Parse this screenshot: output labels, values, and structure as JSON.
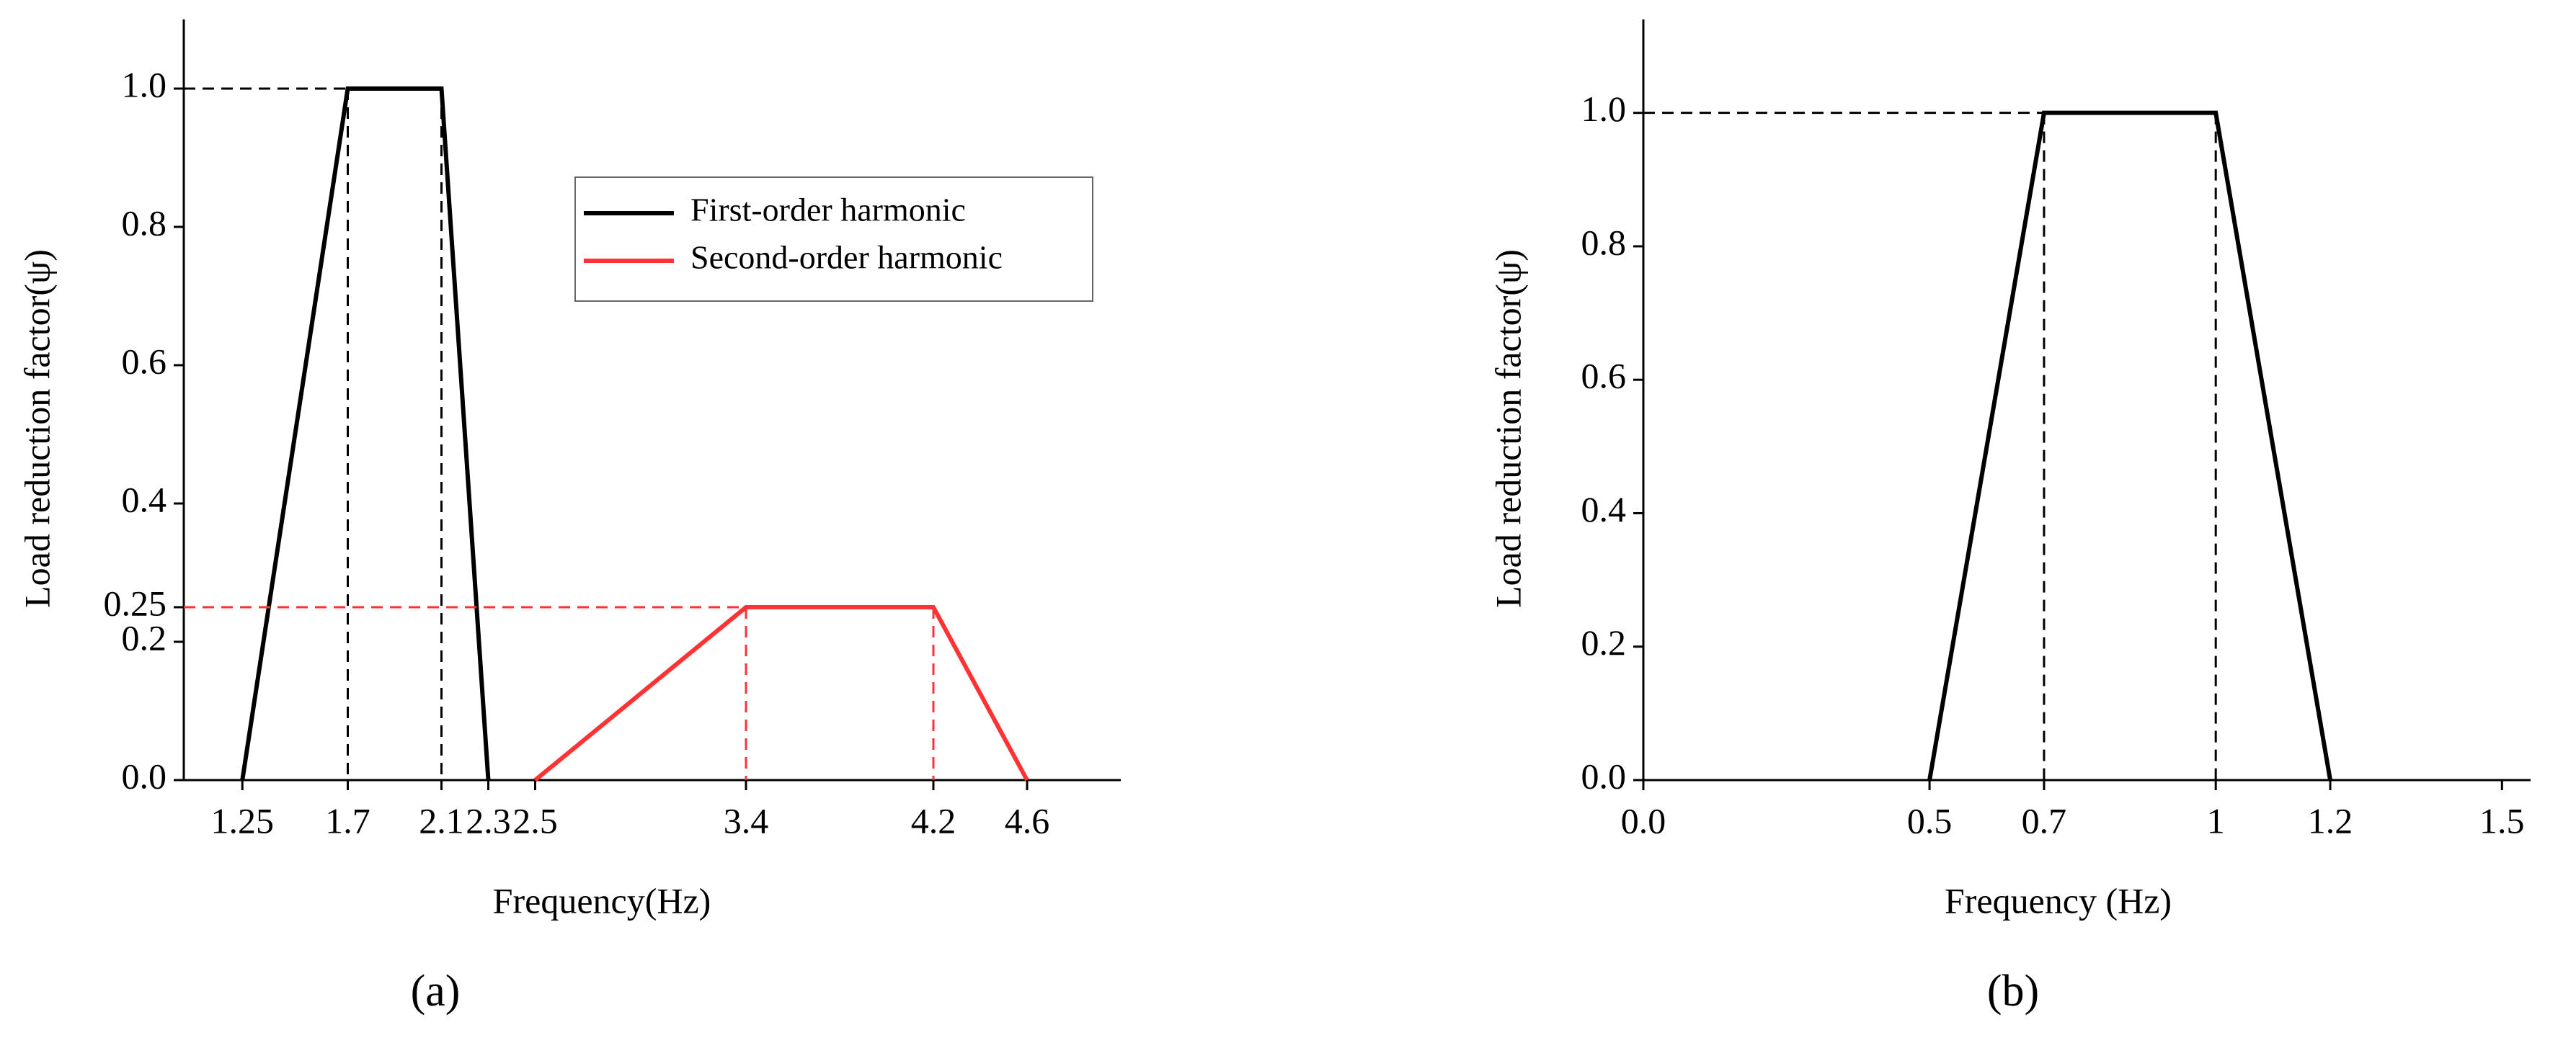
{
  "chart_data": [
    {
      "type": "line",
      "panel_label": "(a)",
      "x_label": "Frequency(Hz)",
      "y_label": "Load reduction factor(ψ)",
      "xlim": [
        1.0,
        5.0
      ],
      "ylim": [
        0,
        1.1
      ],
      "xticks": [
        1.25,
        1.7,
        2.1,
        2.3,
        2.5,
        3.4,
        4.2,
        4.6
      ],
      "yticks": [
        {
          "value": 0,
          "label": "0.0"
        },
        0.2,
        0.25,
        0.4,
        0.6,
        0.8,
        {
          "value": 1,
          "label": "1.0"
        }
      ],
      "legend": "upper center",
      "series": [
        {
          "name": "First-order harmonic",
          "color": "#000000",
          "x": [
            1.25,
            1.7,
            2.1,
            2.3
          ],
          "values": [
            0,
            1,
            1,
            0
          ]
        },
        {
          "name": "Second-order harmonic",
          "color": "#ff3333",
          "x": [
            2.5,
            3.4,
            4.2,
            4.6
          ],
          "values": [
            0,
            0.25,
            0.25,
            0
          ]
        }
      ]
    },
    {
      "type": "line",
      "panel_label": "(b)",
      "x_label": "Frequency (Hz)",
      "y_label": "Load reduction factor(ψ)",
      "xlim": [
        0,
        1.55
      ],
      "ylim": [
        0,
        1.14
      ],
      "xticks": [
        {
          "value": 0,
          "label": "0.0"
        },
        0.5,
        0.7,
        1,
        1.2,
        1.5
      ],
      "yticks": [
        {
          "value": 0,
          "label": "0.0"
        },
        0.2,
        0.4,
        0.6,
        0.8,
        {
          "value": 1,
          "label": "1.0"
        }
      ],
      "series": [
        {
          "color": "#000000",
          "x": [
            0.5,
            0.7,
            1,
            1.2
          ],
          "values": [
            0,
            1,
            1,
            0
          ]
        }
      ]
    }
  ]
}
